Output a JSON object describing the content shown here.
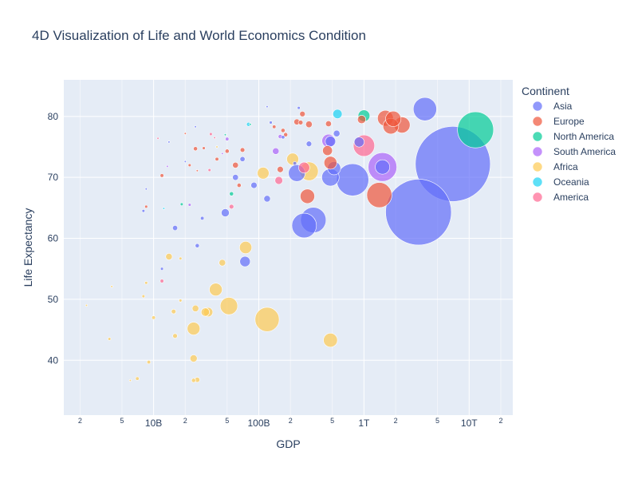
{
  "chart_data": {
    "type": "scatter",
    "title": "4D Visualization of Life and World Economics Condition",
    "xlabel": "GDP",
    "ylabel": "Life Expectancy",
    "x_scale": "log",
    "xlim": [
      1400000000.0,
      26000000000000.0
    ],
    "ylim": [
      31,
      86
    ],
    "x_ticks": [
      {
        "value": 10000000000.0,
        "label": "10B"
      },
      {
        "value": 100000000000.0,
        "label": "100B"
      },
      {
        "value": 1000000000000.0,
        "label": "1T"
      },
      {
        "value": 10000000000000.0,
        "label": "10T"
      }
    ],
    "x_minor_ticks": [
      {
        "value": 2000000000.0,
        "label": "2"
      },
      {
        "value": 5000000000.0,
        "label": "5"
      },
      {
        "value": 20000000000.0,
        "label": "2"
      },
      {
        "value": 50000000000.0,
        "label": "5"
      },
      {
        "value": 200000000000.0,
        "label": "2"
      },
      {
        "value": 500000000000.0,
        "label": "5"
      },
      {
        "value": 2000000000000.0,
        "label": "2"
      },
      {
        "value": 5000000000000.0,
        "label": "5"
      },
      {
        "value": 20000000000000.0,
        "label": "2"
      }
    ],
    "y_ticks": [
      40,
      50,
      60,
      70,
      80
    ],
    "grid": true,
    "legend": {
      "title": "Continent",
      "position": "right"
    },
    "series": [
      {
        "name": "Asia",
        "color": "#636efa",
        "points": [
          [
            7000000000000.0,
            72.2,
            1300
          ],
          [
            3300000000000.0,
            64.3,
            1000
          ],
          [
            3800000000000.0,
            81.2,
            126
          ],
          [
            1500000000000.0,
            71.7,
            48
          ],
          [
            780000000000.0,
            69.6,
            240
          ],
          [
            330000000000.0,
            63.0,
            150
          ],
          [
            270000000000.0,
            62.1,
            140
          ],
          [
            480000000000.0,
            70.0,
            70
          ],
          [
            520000000000.0,
            71.5,
            40
          ],
          [
            230000000000.0,
            70.7,
            65
          ],
          [
            900000000000.0,
            75.8,
            23
          ],
          [
            480000000000.0,
            75.9,
            25
          ],
          [
            550000000000.0,
            77.2,
            10
          ],
          [
            300000000000.0,
            75.5,
            7
          ],
          [
            74000000000.0,
            56.2,
            25
          ],
          [
            48000000000.0,
            64.2,
            15
          ],
          [
            120000000000.0,
            66.5,
            10
          ],
          [
            90000000000.0,
            68.7,
            9
          ],
          [
            60000000000.0,
            70.0,
            8
          ],
          [
            70000000000.0,
            73.0,
            6
          ],
          [
            16000000000.0,
            61.7,
            6
          ],
          [
            26000000000.0,
            58.8,
            4
          ],
          [
            29000000000.0,
            63.3,
            3
          ],
          [
            12000000000.0,
            55.0,
            2
          ],
          [
            220000000000.0,
            72.3,
            3
          ],
          [
            240000000000.0,
            81.4,
            2
          ],
          [
            120000000000.0,
            81.6,
            1
          ],
          [
            130000000000.0,
            79.0,
            2
          ],
          [
            170000000000.0,
            76.6,
            3
          ],
          [
            8000000000.0,
            64.5,
            2
          ],
          [
            8500000000.0,
            68.1,
            1
          ],
          [
            14000000000.0,
            75.8,
            1
          ],
          [
            20000000000.0,
            72.6,
            1
          ],
          [
            25000000000.0,
            78.3,
            1
          ]
        ]
      },
      {
        "name": "Europe",
        "color": "#ef553b",
        "points": [
          [
            2300000000000.0,
            78.6,
            60
          ],
          [
            1800000000000.0,
            78.4,
            57
          ],
          [
            1600000000000.0,
            79.7,
            58
          ],
          [
            1900000000000.0,
            79.6,
            55
          ],
          [
            1400000000000.0,
            67.1,
            145
          ],
          [
            950000000000.0,
            79.5,
            16
          ],
          [
            480000000000.0,
            72.4,
            38
          ],
          [
            450000000000.0,
            74.4,
            22
          ],
          [
            290000000000.0,
            66.9,
            48
          ],
          [
            460000000000.0,
            78.8,
            8
          ],
          [
            300000000000.0,
            78.7,
            10
          ],
          [
            230000000000.0,
            79.1,
            8
          ],
          [
            260000000000.0,
            80.4,
            7
          ],
          [
            250000000000.0,
            79.0,
            5
          ],
          [
            170000000000.0,
            77.7,
            4
          ],
          [
            160000000000.0,
            71.3,
            9
          ],
          [
            180000000000.0,
            77.0,
            4
          ],
          [
            140000000000.0,
            78.3,
            3
          ],
          [
            70000000000.0,
            74.5,
            5
          ],
          [
            60000000000.0,
            72.0,
            8
          ],
          [
            50000000000.0,
            74.3,
            4
          ],
          [
            25000000000.0,
            74.7,
            4
          ],
          [
            30000000000.0,
            74.8,
            2
          ],
          [
            40000000000.0,
            73.0,
            3
          ],
          [
            20000000000.0,
            77.2,
            1
          ],
          [
            22000000000.0,
            72.0,
            2
          ],
          [
            65000000000.0,
            68.7,
            4
          ],
          [
            12000000000.0,
            70.3,
            3
          ],
          [
            8500000000.0,
            65.2,
            2
          ],
          [
            26000000000.0,
            71.1,
            1
          ]
        ]
      },
      {
        "name": "North America",
        "color": "#00cc96",
        "points": [
          [
            11500000000000.0,
            77.8,
            300
          ],
          [
            1000000000000.0,
            80.1,
            32
          ],
          [
            55000000000.0,
            67.3,
            4
          ],
          [
            18500000000.0,
            65.6,
            2
          ],
          [
            48000000000.0,
            77.0,
            1
          ],
          [
            83000000000.0,
            78.7,
            1
          ]
        ]
      },
      {
        "name": "South America",
        "color": "#ab63fa",
        "points": [
          [
            1500000000000.0,
            71.7,
            190
          ],
          [
            460000000000.0,
            76.0,
            40
          ],
          [
            145000000000.0,
            74.3,
            10
          ],
          [
            160000000000.0,
            76.7,
            4
          ],
          [
            50000000000.0,
            76.3,
            3
          ],
          [
            22000000000.0,
            65.5,
            2
          ],
          [
            13500000000.0,
            71.8,
            1
          ],
          [
            45000000000.0,
            73.9,
            1
          ]
        ]
      },
      {
        "name": "Africa",
        "color": "#fecb52",
        "points": [
          [
            120000000000.0,
            46.7,
            135
          ],
          [
            52000000000.0,
            48.9,
            70
          ],
          [
            300000000000.0,
            71.0,
            80
          ],
          [
            480000000000.0,
            43.3,
            45
          ],
          [
            75000000000.0,
            58.5,
            35
          ],
          [
            110000000000.0,
            70.7,
            32
          ],
          [
            210000000000.0,
            73.0,
            33
          ],
          [
            24000000000.0,
            45.2,
            38
          ],
          [
            39000000000.0,
            51.6,
            38
          ],
          [
            33000000000.0,
            47.9,
            20
          ],
          [
            31000000000.0,
            47.9,
            16
          ],
          [
            24000000000.0,
            40.3,
            12
          ],
          [
            25000000000.0,
            48.5,
            10
          ],
          [
            45000000000.0,
            56.0,
            10
          ],
          [
            14000000000.0,
            57.0,
            10
          ],
          [
            16000000000.0,
            44.0,
            5
          ],
          [
            24000000000.0,
            36.7,
            4
          ],
          [
            26000000000.0,
            36.8,
            6
          ],
          [
            15500000000.0,
            48.0,
            5
          ],
          [
            7000000000.0,
            37.0,
            3
          ],
          [
            9000000000.0,
            39.7,
            3
          ],
          [
            10000000000.0,
            47.0,
            3
          ],
          [
            8000000000.0,
            50.5,
            2
          ],
          [
            8500000000.0,
            52.7,
            2
          ],
          [
            18000000000.0,
            49.8,
            2
          ],
          [
            18000000000.0,
            56.7,
            2
          ],
          [
            3800000000.0,
            43.5,
            2
          ],
          [
            4000000000.0,
            52.1,
            1
          ],
          [
            2300000000.0,
            49.0,
            1
          ],
          [
            6000000000.0,
            36.7,
            1
          ],
          [
            40000000000.0,
            75.0,
            1
          ]
        ]
      },
      {
        "name": "Oceania",
        "color": "#19d3f3",
        "points": [
          [
            560000000000.0,
            80.4,
            20
          ],
          [
            80000000000.0,
            78.7,
            4
          ],
          [
            12500000000.0,
            64.9,
            1
          ]
        ]
      },
      {
        "name": "America",
        "color": "#ff6692",
        "points": [
          [
            1000000000000.0,
            75.2,
            105
          ],
          [
            270000000000.0,
            71.6,
            28
          ],
          [
            155000000000.0,
            69.5,
            14
          ],
          [
            55000000000.0,
            65.2,
            5
          ],
          [
            12000000000.0,
            53.0,
            3
          ],
          [
            35000000000.0,
            77.1,
            2
          ],
          [
            34000000000.0,
            71.2,
            2
          ],
          [
            38000000000.0,
            76.5,
            1
          ],
          [
            11000000000.0,
            76.4,
            1
          ]
        ]
      }
    ]
  }
}
